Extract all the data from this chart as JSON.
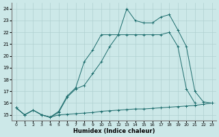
{
  "xlabel": "Humidex (Indice chaleur)",
  "xlim": [
    -0.5,
    23.5
  ],
  "ylim": [
    14.5,
    24.5
  ],
  "yticks": [
    15,
    16,
    17,
    18,
    19,
    20,
    21,
    22,
    23,
    24
  ],
  "xticks": [
    0,
    1,
    2,
    3,
    4,
    5,
    6,
    7,
    8,
    9,
    10,
    11,
    12,
    13,
    14,
    15,
    16,
    17,
    18,
    19,
    20,
    21,
    22,
    23
  ],
  "bg_color": "#cce8e8",
  "line_color": "#1a6b6b",
  "grid_color": "#b0d0d0",
  "series_flat": {
    "x": [
      0,
      1,
      2,
      3,
      4,
      5,
      6,
      7,
      8,
      9,
      10,
      11,
      12,
      13,
      14,
      15,
      16,
      17,
      18,
      19,
      20,
      21,
      22,
      23
    ],
    "y": [
      15.6,
      15.0,
      15.4,
      15.0,
      14.8,
      15.0,
      15.05,
      15.1,
      15.15,
      15.2,
      15.3,
      15.35,
      15.4,
      15.45,
      15.5,
      15.5,
      15.55,
      15.6,
      15.65,
      15.7,
      15.75,
      15.8,
      15.9,
      16.0
    ]
  },
  "series_mid": {
    "x": [
      0,
      1,
      2,
      3,
      4,
      5,
      6,
      7,
      8,
      9,
      10,
      11,
      12,
      13,
      14,
      15,
      16,
      17,
      18,
      19,
      20,
      21,
      22,
      23
    ],
    "y": [
      15.6,
      15.0,
      15.4,
      15.0,
      14.8,
      15.2,
      16.5,
      17.2,
      17.5,
      18.5,
      19.5,
      20.8,
      21.8,
      21.8,
      21.8,
      21.8,
      21.8,
      21.8,
      22.0,
      20.8,
      17.2,
      16.0,
      null,
      null
    ]
  },
  "series_top": {
    "x": [
      0,
      1,
      2,
      3,
      4,
      5,
      6,
      7,
      8,
      9,
      10,
      11,
      12,
      13,
      14,
      15,
      16,
      17,
      18,
      19,
      20,
      21,
      22,
      23
    ],
    "y": [
      15.6,
      15.0,
      15.4,
      15.0,
      14.8,
      15.3,
      16.6,
      17.3,
      19.5,
      20.5,
      21.8,
      21.8,
      21.8,
      24.0,
      23.0,
      22.8,
      22.8,
      23.3,
      23.5,
      22.2,
      20.8,
      17.0,
      16.1,
      16.0
    ]
  }
}
